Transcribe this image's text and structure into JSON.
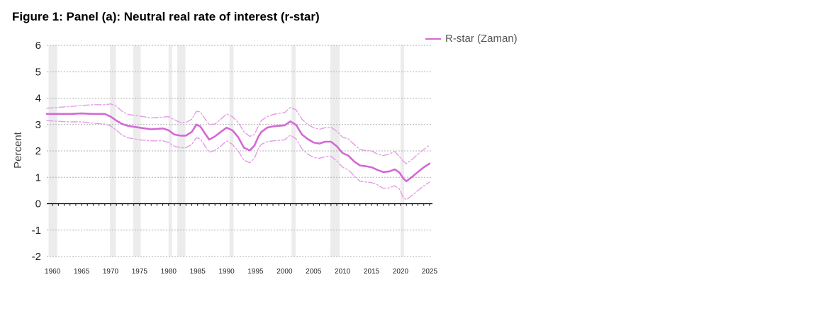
{
  "page": {
    "title": "Figure 1: Panel (a): Neutral real rate of interest (r-star)"
  },
  "chart_data": {
    "type": "line",
    "title": "Figure 1: Panel (a): Neutral real rate of interest (r-star)",
    "ylabel": "Percent",
    "xlabel": "",
    "ylim": [
      -2,
      6
    ],
    "xlim": [
      1959,
      2025.5
    ],
    "yticks": [
      6,
      5,
      4,
      3,
      2,
      1,
      0,
      -1,
      -2
    ],
    "xticks": [
      1960,
      1965,
      1970,
      1975,
      1980,
      1985,
      1990,
      1995,
      2000,
      2005,
      2010,
      2015,
      2020,
      2025
    ],
    "grid": "horizontal dotted",
    "legend": {
      "placement": "top-right",
      "entries": [
        "R-star (Zaman)"
      ]
    },
    "colors": {
      "series": "#d568d5",
      "band": "#e49de4",
      "recession": "#ececec",
      "grid": "#b0b0b0"
    },
    "recessions": [
      [
        1959.3,
        1960.8
      ],
      [
        1969.9,
        1970.9
      ],
      [
        1973.9,
        1975.2
      ],
      [
        1980.0,
        1980.6
      ],
      [
        1981.5,
        1982.9
      ],
      [
        1990.5,
        1991.2
      ],
      [
        2001.2,
        2001.9
      ],
      [
        2007.9,
        2009.5
      ],
      [
        2020.0,
        2020.4
      ]
    ],
    "series": [
      {
        "name": "R-star (Zaman)",
        "x": [
          1959,
          1961,
          1963,
          1965,
          1967,
          1969,
          1970,
          1971,
          1972,
          1973,
          1975,
          1977,
          1979,
          1980,
          1981,
          1982,
          1983,
          1984,
          1984.8,
          1985.5,
          1986,
          1987,
          1988,
          1989,
          1990,
          1991,
          1992,
          1993,
          1994,
          1994.8,
          1995.5,
          1996,
          1997,
          1998,
          1999,
          2000,
          2001,
          2002,
          2003,
          2004,
          2005,
          2006,
          2007,
          2008,
          2009,
          2010,
          2011,
          2012,
          2013,
          2014,
          2015,
          2016,
          2017,
          2018,
          2019,
          2019.8,
          2020.5,
          2021,
          2022,
          2023,
          2024,
          2025
        ],
        "y": [
          3.4,
          3.4,
          3.4,
          3.42,
          3.4,
          3.4,
          3.3,
          3.15,
          3.02,
          2.95,
          2.88,
          2.82,
          2.85,
          2.78,
          2.62,
          2.58,
          2.58,
          2.72,
          3.0,
          2.92,
          2.75,
          2.43,
          2.55,
          2.72,
          2.88,
          2.78,
          2.52,
          2.12,
          2.02,
          2.2,
          2.55,
          2.72,
          2.88,
          2.93,
          2.95,
          2.97,
          3.12,
          2.98,
          2.62,
          2.45,
          2.32,
          2.28,
          2.35,
          2.35,
          2.18,
          1.92,
          1.82,
          1.6,
          1.45,
          1.42,
          1.38,
          1.28,
          1.2,
          1.22,
          1.3,
          1.18,
          0.95,
          0.85,
          1.02,
          1.2,
          1.38,
          1.52
        ]
      },
      {
        "name": "",
        "band": "upper",
        "x": [
          1959,
          1961,
          1963,
          1965,
          1967,
          1969,
          1970,
          1971,
          1972,
          1973,
          1975,
          1977,
          1979,
          1980,
          1981,
          1982,
          1983,
          1984,
          1984.8,
          1985.5,
          1986,
          1987,
          1988,
          1989,
          1990,
          1991,
          1992,
          1993,
          1994,
          1994.8,
          1995.5,
          1996,
          1997,
          1998,
          1999,
          2000,
          2001,
          2002,
          2003,
          2004,
          2005,
          2006,
          2007,
          2008,
          2009,
          2010,
          2011,
          2012,
          2013,
          2014,
          2015,
          2016,
          2017,
          2018,
          2019,
          2019.8,
          2020.5,
          2021,
          2022,
          2023,
          2024,
          2025
        ],
        "y": [
          3.62,
          3.65,
          3.68,
          3.72,
          3.75,
          3.75,
          3.78,
          3.7,
          3.5,
          3.38,
          3.32,
          3.25,
          3.28,
          3.3,
          3.18,
          3.08,
          3.08,
          3.2,
          3.5,
          3.48,
          3.3,
          3.0,
          3.02,
          3.2,
          3.4,
          3.3,
          3.08,
          2.72,
          2.55,
          2.62,
          2.95,
          3.15,
          3.3,
          3.38,
          3.42,
          3.45,
          3.65,
          3.55,
          3.2,
          3.0,
          2.88,
          2.82,
          2.88,
          2.9,
          2.75,
          2.52,
          2.45,
          2.25,
          2.05,
          2.02,
          2.0,
          1.88,
          1.82,
          1.88,
          1.98,
          1.78,
          1.6,
          1.52,
          1.68,
          1.88,
          2.05,
          2.22
        ]
      },
      {
        "name": "",
        "band": "lower",
        "x": [
          1959,
          1961,
          1963,
          1965,
          1967,
          1969,
          1970,
          1971,
          1972,
          1973,
          1975,
          1977,
          1979,
          1980,
          1981,
          1982,
          1983,
          1984,
          1984.8,
          1985.5,
          1986,
          1987,
          1988,
          1989,
          1990,
          1991,
          1992,
          1993,
          1994,
          1994.8,
          1995.5,
          1996,
          1997,
          1998,
          1999,
          2000,
          2001,
          2002,
          2003,
          2004,
          2005,
          2006,
          2007,
          2008,
          2009,
          2010,
          2011,
          2012,
          2013,
          2014,
          2015,
          2016,
          2017,
          2018,
          2019,
          2019.8,
          2020.5,
          2021,
          2022,
          2023,
          2024,
          2025
        ],
        "y": [
          3.15,
          3.12,
          3.1,
          3.1,
          3.05,
          3.02,
          2.95,
          2.78,
          2.6,
          2.5,
          2.42,
          2.38,
          2.38,
          2.32,
          2.18,
          2.12,
          2.12,
          2.25,
          2.5,
          2.45,
          2.28,
          1.95,
          2.02,
          2.18,
          2.38,
          2.25,
          2.0,
          1.65,
          1.55,
          1.72,
          2.1,
          2.25,
          2.35,
          2.38,
          2.4,
          2.42,
          2.6,
          2.45,
          2.08,
          1.88,
          1.75,
          1.72,
          1.78,
          1.8,
          1.62,
          1.38,
          1.28,
          1.05,
          0.85,
          0.82,
          0.8,
          0.72,
          0.58,
          0.6,
          0.68,
          0.55,
          0.22,
          0.15,
          0.32,
          0.5,
          0.68,
          0.82
        ]
      }
    ]
  }
}
